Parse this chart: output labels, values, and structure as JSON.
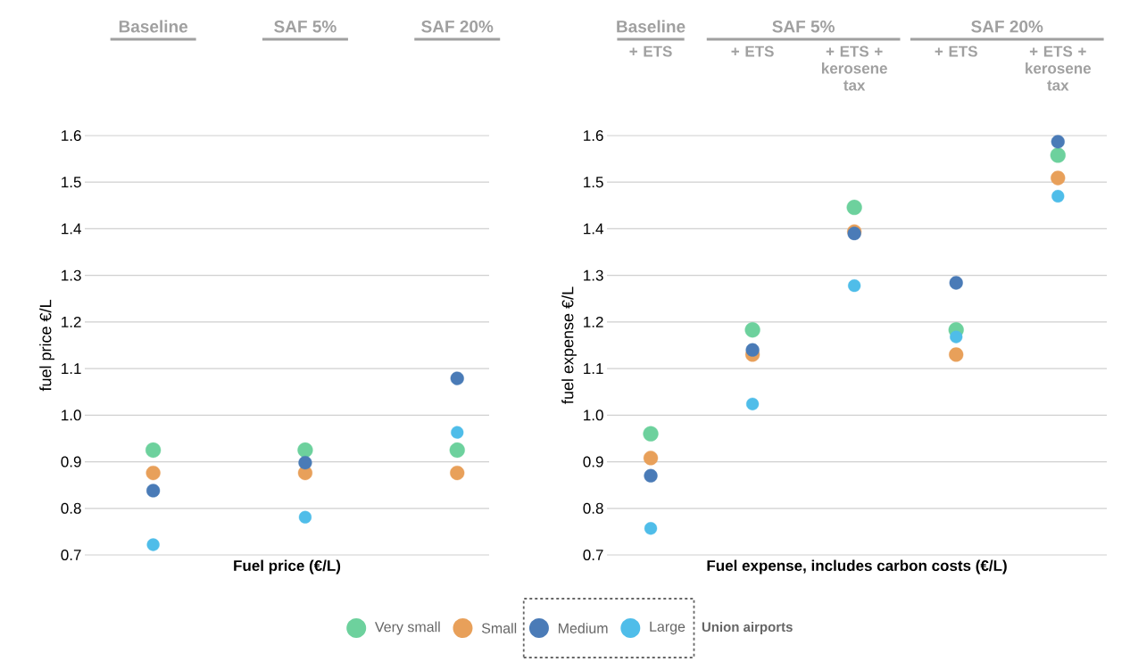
{
  "chart_data": [
    {
      "type": "scatter",
      "categories": [
        "Baseline",
        "SAF 5%",
        "SAF 20%"
      ],
      "series": [
        {
          "name": "Very small",
          "color": "#6dd19d",
          "values": [
            0.925,
            0.925,
            0.925
          ]
        },
        {
          "name": "Small",
          "color": "#e8a05a",
          "values": [
            0.876,
            0.876,
            0.876
          ]
        },
        {
          "name": "Medium",
          "color": "#4a7bb7",
          "values": [
            0.838,
            0.898,
            1.079
          ]
        },
        {
          "name": "Large",
          "color": "#4fbde9",
          "values": [
            0.722,
            0.781,
            0.963
          ]
        }
      ],
      "xlabel": "Fuel price (€/L)",
      "ylabel": "fuel price €/L",
      "ylim": [
        0.7,
        1.6
      ],
      "yticks": [
        0.7,
        0.8,
        0.9,
        {
          "value": 1.0,
          "label": "1.0"
        },
        1.1,
        1.2,
        1.3,
        1.4,
        1.5,
        1.6
      ],
      "grid": "y",
      "marker": "circle",
      "legend": "bottom",
      "legend_title": "Union airports"
    },
    {
      "type": "scatter",
      "categories": [
        "+ ETS",
        "+ ETS",
        "+ ETS + kerosene tax",
        "+ ETS",
        "+ ETS + kerosene tax"
      ],
      "series": [
        {
          "color": "#6dd19d",
          "values": [
            0.96,
            1.183,
            1.446,
            1.183,
            1.558
          ]
        },
        {
          "color": "#e8a05a",
          "values": [
            0.908,
            1.13,
            1.394,
            1.13,
            1.509
          ]
        },
        {
          "color": "#4a7bb7",
          "values": [
            0.87,
            1.14,
            1.39,
            1.284,
            1.587
          ]
        },
        {
          "color": "#4fbde9",
          "values": [
            0.757,
            1.024,
            1.278,
            1.168,
            1.47
          ]
        }
      ],
      "xlabel": "Fuel expense, includes carbon costs (€/L)",
      "ylabel": "fuel expense €/L",
      "ylim": [
        0.7,
        1.6
      ],
      "yticks": [
        0.7,
        0.8,
        0.9,
        {
          "value": 1.0,
          "label": "1.0"
        },
        1.1,
        1.2,
        1.3,
        1.4,
        1.5,
        1.6
      ],
      "grid": "y",
      "marker": "circle",
      "annotations": [
        "Baseline",
        "SAF 5%",
        "SAF 20%"
      ]
    }
  ]
}
